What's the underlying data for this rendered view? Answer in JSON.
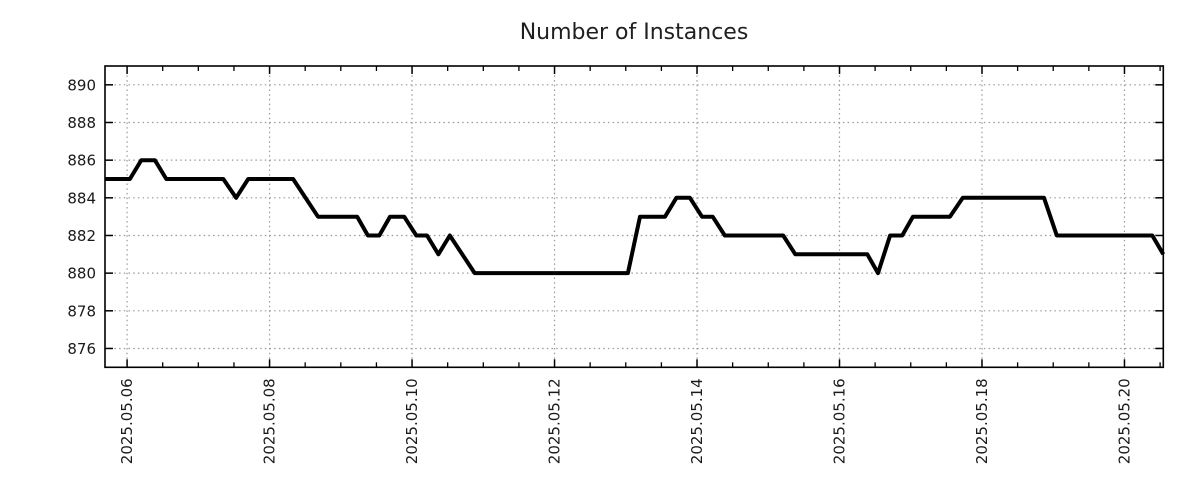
{
  "page": {
    "background_color": "#ffffff"
  },
  "chart_data": {
    "type": "line",
    "title": "Number of Instances",
    "line_color": "#000000",
    "grid_color": "#999999",
    "border_color": "#000000",
    "text_color": "#1a1a1a",
    "grid_on": true,
    "legend": "none",
    "xlabel": "",
    "ylabel": "",
    "x_unit": "date (2025, May, decimal days)",
    "xlim": [
      5.69,
      20.545
    ],
    "ylim": [
      875,
      891
    ],
    "y_ticks": [
      876,
      878,
      880,
      882,
      884,
      886,
      888,
      890
    ],
    "x_ticks": [
      {
        "day": 6,
        "label": "2025.05.06"
      },
      {
        "day": 8,
        "label": "2025.05.08"
      },
      {
        "day": 10,
        "label": "2025.05.10"
      },
      {
        "day": 12,
        "label": "2025.05.12"
      },
      {
        "day": 14,
        "label": "2025.05.14"
      },
      {
        "day": 16,
        "label": "2025.05.16"
      },
      {
        "day": 18,
        "label": "2025.05.18"
      },
      {
        "day": 20,
        "label": "2025.05.20"
      }
    ],
    "x_minor_tick_step": 0.5,
    "points_day_value": [
      [
        5.69,
        885
      ],
      [
        6.04,
        885
      ],
      [
        6.2,
        886
      ],
      [
        6.39,
        886
      ],
      [
        6.55,
        885
      ],
      [
        7.35,
        885
      ],
      [
        7.53,
        884
      ],
      [
        7.7,
        885
      ],
      [
        8.33,
        885
      ],
      [
        8.68,
        883
      ],
      [
        9.23,
        883
      ],
      [
        9.38,
        882
      ],
      [
        9.54,
        882
      ],
      [
        9.69,
        883
      ],
      [
        9.89,
        883
      ],
      [
        10.06,
        882
      ],
      [
        10.21,
        882
      ],
      [
        10.37,
        881
      ],
      [
        10.53,
        882
      ],
      [
        10.88,
        880
      ],
      [
        13.03,
        880
      ],
      [
        13.2,
        883
      ],
      [
        13.55,
        883
      ],
      [
        13.71,
        884
      ],
      [
        13.9,
        884
      ],
      [
        14.07,
        883
      ],
      [
        14.22,
        883
      ],
      [
        14.39,
        882
      ],
      [
        15.21,
        882
      ],
      [
        15.38,
        881
      ],
      [
        16.39,
        881
      ],
      [
        16.54,
        880
      ],
      [
        16.71,
        882
      ],
      [
        16.88,
        882
      ],
      [
        17.03,
        883
      ],
      [
        17.55,
        883
      ],
      [
        17.73,
        884
      ],
      [
        18.87,
        884
      ],
      [
        19.05,
        882
      ],
      [
        20.39,
        882
      ],
      [
        20.545,
        881
      ]
    ]
  }
}
